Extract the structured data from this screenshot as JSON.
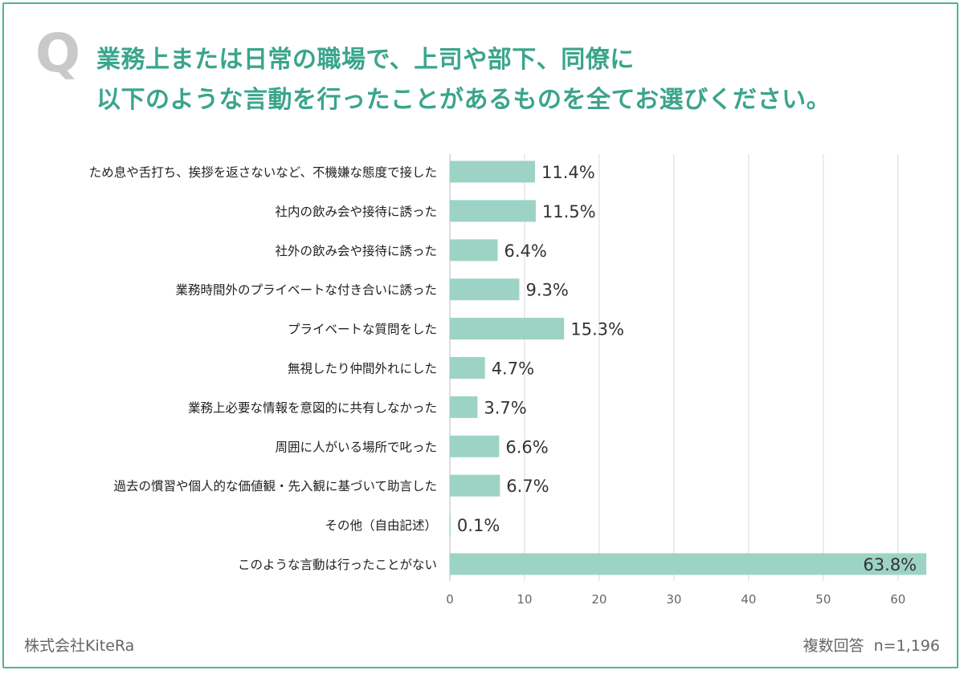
{
  "question": {
    "mark": "Q",
    "line1": "業務上または日常の職場で、上司や部下、同僚に",
    "line2": "以下のような言動を行ったことがあるものを全てお選びください。"
  },
  "chart_data": {
    "type": "bar",
    "orientation": "horizontal",
    "categories": [
      "ため息や舌打ち、挨拶を返さないなど、不機嫌な態度で接した",
      "社内の飲み会や接待に誘った",
      "社外の飲み会や接待に誘った",
      "業務時間外のプライベートな付き合いに誘った",
      "プライベートな質問をした",
      "無視したり仲間外れにした",
      "業務上必要な情報を意図的に共有しなかった",
      "周囲に人がいる場所で叱った",
      "過去の慣習や個人的な価値観・先入観に基づいて助言した",
      "その他（自由記述）",
      "このような言動は行ったことがない"
    ],
    "values": [
      11.4,
      11.5,
      6.4,
      9.3,
      15.3,
      4.7,
      3.7,
      6.6,
      6.7,
      0.1,
      63.8
    ],
    "labels": [
      "11.4%",
      "11.5%",
      "6.4%",
      "9.3%",
      "15.3%",
      "4.7%",
      "3.7%",
      "6.6%",
      "6.7%",
      "0.1%",
      "63.8%"
    ],
    "xlim": [
      0,
      64
    ],
    "xticks": [
      0,
      10,
      20,
      30,
      40,
      50,
      60
    ],
    "grid": true,
    "bar_color": "#9dd3c5",
    "grid_color": "#d9d9d9"
  },
  "footer": {
    "company": "株式会社KiteRa",
    "note": "複数回答",
    "sample": "n=1,196"
  }
}
